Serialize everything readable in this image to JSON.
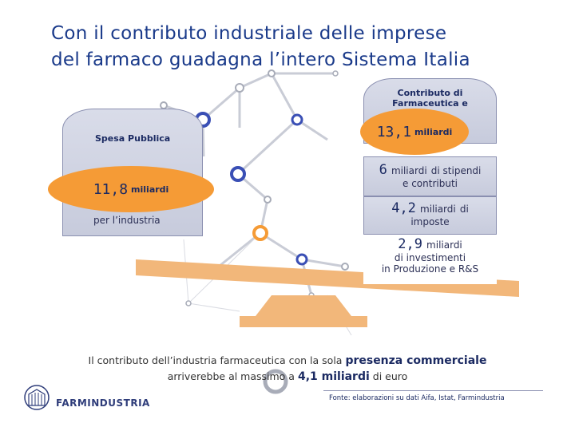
{
  "title": {
    "line1": "Con il contributo industriale delle imprese",
    "line2": "del farmaco guadagna l’intero Sistema Italia"
  },
  "left": {
    "label": "Spesa Pubblica",
    "value": "11,8",
    "unit": "miliardi",
    "caption": "per l’industria"
  },
  "right": {
    "label": "Contributo di Farmaceutica e",
    "value": "13,1",
    "unit": "miliardi",
    "items": [
      {
        "value": "6",
        "unit": "miliardi",
        "text": "di stipendi",
        "text2": "e contributi"
      },
      {
        "value": "4,2",
        "unit": "miliardi",
        "text": "di",
        "text2": "imposte"
      },
      {
        "value": "2,9",
        "unit": "miliardi",
        "text": "",
        "text2": "di investimenti",
        "text3": "in Produzione e R&S"
      }
    ]
  },
  "footer": {
    "part1": "Il contributo dell’industria farmaceutica con la sola ",
    "bold1": "presenza commerciale",
    "part2": "arriverebbe al massimo a ",
    "bold2": "4,1 miliardi",
    "part3": " di euro"
  },
  "source": "Fonte: elaborazioni su dati Aifa, Istat, Farmindustria",
  "logo": "FARMINDUSTRIA",
  "colors": {
    "accent_orange": "#f59b36",
    "navy": "#1b2a62",
    "box_fill": "#d0d3e3",
    "network_blue": "#3a4fb5",
    "network_grey": "#a8acb8"
  }
}
